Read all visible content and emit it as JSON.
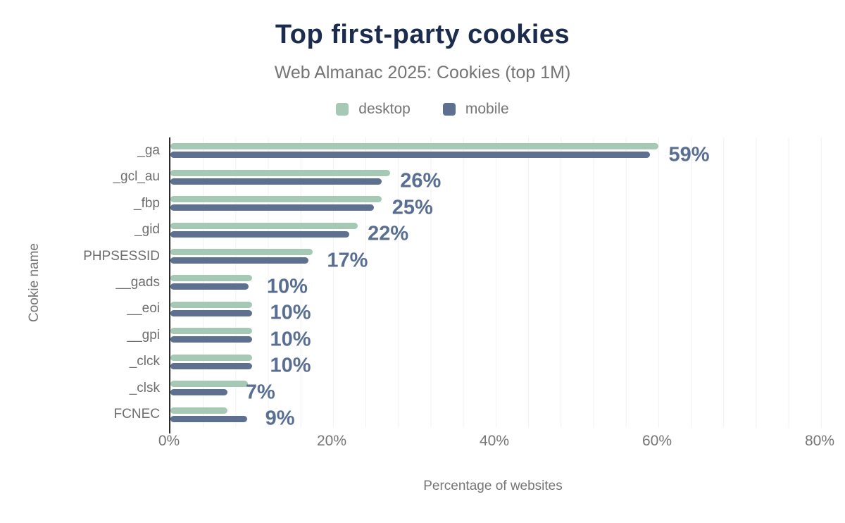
{
  "chart_data": {
    "type": "bar",
    "orientation": "horizontal",
    "title": "Top first-party cookies",
    "subtitle": "Web Almanac 2025: Cookies (top 1M)",
    "xlabel": "Percentage of websites",
    "ylabel": "Cookie name",
    "xlim": [
      0,
      80
    ],
    "x_tick_values": [
      0,
      20,
      40,
      60,
      80
    ],
    "x_tick_labels": [
      "0%",
      "20%",
      "40%",
      "60%",
      "80%"
    ],
    "grid": "vertical minor gridlines every 4%",
    "legend_position": "top-center",
    "categories": [
      "_ga",
      "_gcl_au",
      "_fbp",
      "_gid",
      "PHPSESSID",
      "__gads",
      "__eoi",
      "__gpi",
      "_clck",
      "_clsk",
      "FCNEC"
    ],
    "series": [
      {
        "name": "desktop",
        "color": "#a6c9b6",
        "values": [
          60,
          27,
          26,
          23,
          17.5,
          10,
          10,
          10,
          10,
          9.5,
          7
        ]
      },
      {
        "name": "mobile",
        "color": "#5d7090",
        "values": [
          59,
          26,
          25,
          22,
          17,
          9.6,
          10,
          10,
          10,
          7,
          9.4
        ]
      }
    ],
    "value_labels": [
      "59%",
      "26%",
      "25%",
      "22%",
      "17%",
      "10%",
      "10%",
      "10%",
      "10%",
      "7%",
      "9%"
    ],
    "value_label_series": "mobile",
    "colors": {
      "title": "#1b2c4e",
      "subtitle": "#757575",
      "axis_text": "#757575",
      "category_text": "#6e6e6e",
      "value_label": "#586e93",
      "axis_line": "#2b2b2b",
      "gridline": "#f1f1f1",
      "desktop": "#a6c9b6",
      "mobile": "#5d7090"
    }
  }
}
